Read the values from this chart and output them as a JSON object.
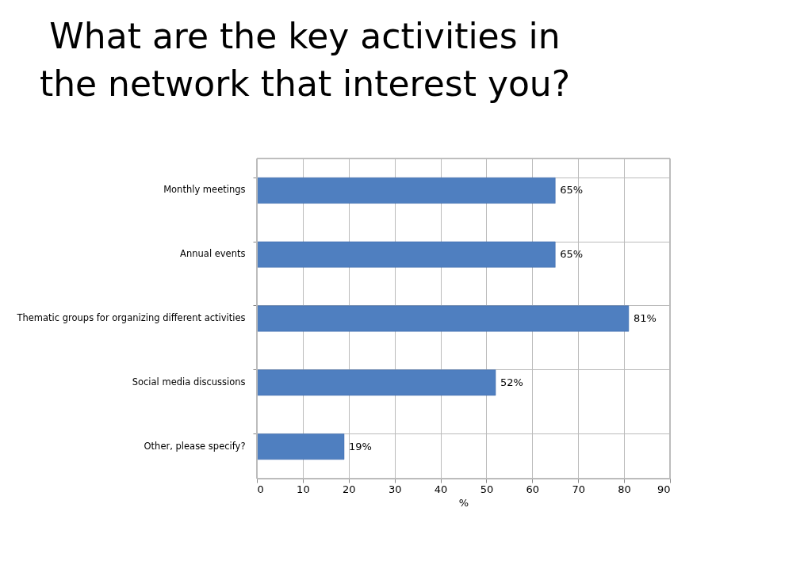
{
  "chart_data": {
    "type": "bar",
    "orientation": "horizontal",
    "title": "What are the key activities in the network that interest you?",
    "categories": [
      "Monthly meetings",
      "Annual events",
      "Thematic groups for organizing different activities",
      "Social media discussions",
      "Other, please specify?"
    ],
    "values": [
      65,
      65,
      81,
      52,
      19
    ],
    "value_labels": [
      "65%",
      "65%",
      "81%",
      "52%",
      "19%"
    ],
    "color": "#4f7fc0",
    "xlabel": "%",
    "xlim": [
      0,
      90
    ],
    "xticks": [
      0,
      10,
      20,
      30,
      40,
      50,
      60,
      70,
      80,
      90
    ],
    "grid": true
  }
}
